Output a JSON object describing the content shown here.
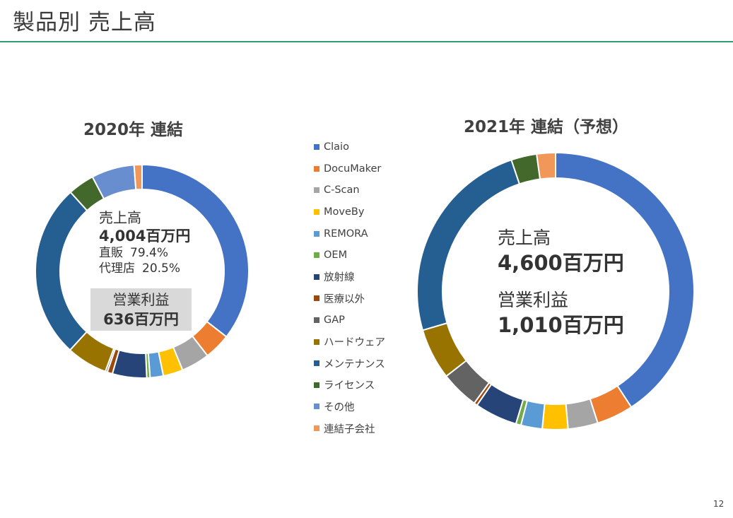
{
  "page": {
    "title": "製品別 売上高",
    "page_number": "12"
  },
  "center_2020": {
    "sales_label": "売上高",
    "sales_value": "4,004百万円",
    "direct_label": "直販",
    "direct_value": "79.4%",
    "agent_label": "代理店",
    "agent_value": "20.5%",
    "profit_label": "営業利益",
    "profit_value": "636百万円"
  },
  "center_2021": {
    "sales_label": "売上高",
    "sales_value": "4,600百万円",
    "profit_label": "営業利益",
    "profit_value": "1,010百万円"
  },
  "chart_data": [
    {
      "type": "pie",
      "title": "2020年 連結",
      "labels": [
        "Claio",
        "DocuMaker",
        "C-Scan",
        "MoveBy",
        "REMORA",
        "OEM",
        "放射線",
        "医療以外",
        "GAP",
        "ハードウェア",
        "メンテナンス",
        "ライセンス",
        "その他",
        "連結子会社"
      ],
      "values": [
        35.5,
        4.0,
        4.3,
        3.0,
        2.0,
        0.5,
        5.2,
        0.8,
        0.3,
        6.2,
        26.5,
        4.0,
        6.5,
        1.2
      ],
      "colors": [
        "#4472c4",
        "#ed7d31",
        "#a5a5a5",
        "#ffc000",
        "#5b9bd5",
        "#70ad47",
        "#264478",
        "#9e480e",
        "#636363",
        "#997300",
        "#255e91",
        "#43682b",
        "#698ed0",
        "#f1975a"
      ],
      "donut": true,
      "legend": "center"
    },
    {
      "type": "pie",
      "title": "2021年 連結（予想）",
      "labels": [
        "Claio",
        "DocuMaker",
        "C-Scan",
        "MoveBy",
        "REMORA",
        "OEM",
        "放射線",
        "医療以外",
        "GAP",
        "ハードウェア",
        "メンテナンス",
        "ライセンス",
        "その他",
        "連結子会社"
      ],
      "values": [
        41.0,
        4.3,
        3.5,
        3.0,
        2.5,
        0.6,
        5.0,
        0.4,
        4.5,
        6.0,
        24.5,
        3.0,
        0.0,
        2.2
      ],
      "colors": [
        "#4472c4",
        "#ed7d31",
        "#a5a5a5",
        "#ffc000",
        "#5b9bd5",
        "#70ad47",
        "#264478",
        "#9e480e",
        "#636363",
        "#997300",
        "#255e91",
        "#43682b",
        "#698ed0",
        "#f1975a"
      ],
      "donut": true,
      "legend": "center"
    }
  ]
}
